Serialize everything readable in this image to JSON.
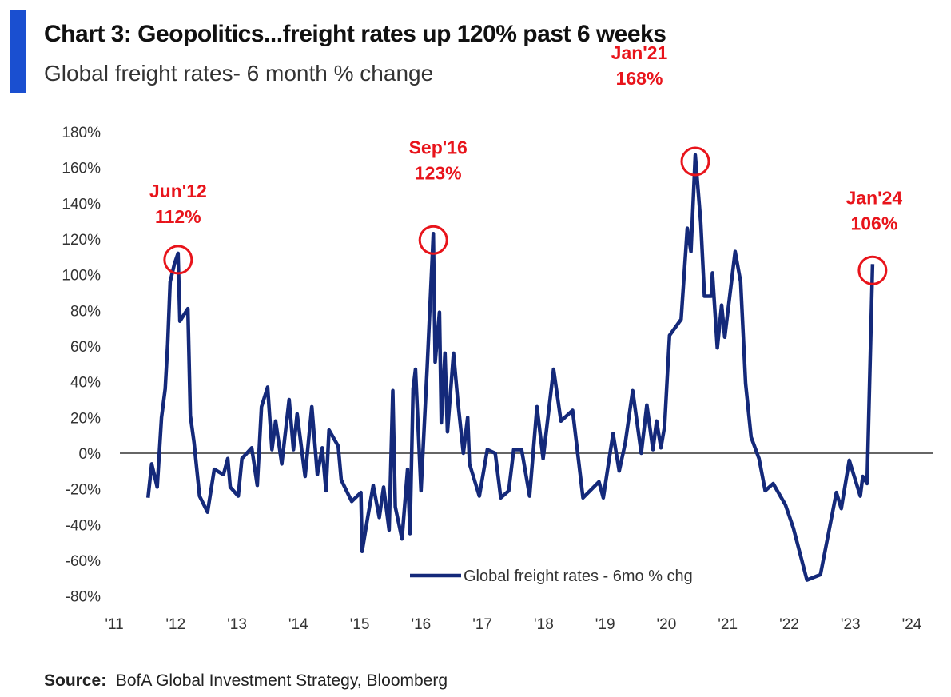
{
  "header": {
    "title": "Chart 3: Geopolitics...freight rates up 120% past 6 weeks",
    "subtitle": "Global freight rates- 6 month % change"
  },
  "source": {
    "label": "Source:",
    "text": "BofA Global Investment Strategy, Bloomberg"
  },
  "colors": {
    "accent": "#1a4fd0",
    "line": "#14297a",
    "annotation": "#e8141b",
    "zero_line": "#666666"
  },
  "chart_data": {
    "type": "line",
    "title": "Chart 3: Geopolitics...freight rates up 120% past 6 weeks",
    "subtitle": "Global freight rates- 6 month % change",
    "xlabel": "",
    "ylabel": "",
    "xlim": [
      2011,
      2024
    ],
    "ylim": [
      -80,
      180
    ],
    "x_ticks": [
      2011,
      2012,
      2013,
      2014,
      2015,
      2016,
      2017,
      2018,
      2019,
      2020,
      2021,
      2022,
      2023,
      2024
    ],
    "x_tick_labels": [
      "'11",
      "'12",
      "'13",
      "'14",
      "'15",
      "'16",
      "'17",
      "'18",
      "'19",
      "'20",
      "'21",
      "'22",
      "'23",
      "'24"
    ],
    "y_ticks": [
      180,
      160,
      140,
      120,
      100,
      80,
      60,
      40,
      20,
      0,
      -20,
      -40,
      -60,
      -80
    ],
    "y_tick_labels": [
      "180%",
      "160%",
      "140%",
      "120%",
      "100%",
      "80%",
      "60%",
      "40%",
      "20%",
      "0%",
      "-20%",
      "-40%",
      "-60%",
      "-80%"
    ],
    "grid": false,
    "legend": {
      "position": "bottom-center",
      "entries": [
        "Global freight rates - 6mo % chg"
      ]
    },
    "series": [
      {
        "name": "Global freight rates - 6mo % chg",
        "x": [
          2011.55,
          2011.61,
          2011.7,
          2011.77,
          2011.83,
          2011.87,
          2011.91,
          2011.98,
          2012.04,
          2012.07,
          2012.2,
          2012.24,
          2012.3,
          2012.39,
          2012.52,
          2012.63,
          2012.78,
          2012.85,
          2012.89,
          2013.02,
          2013.08,
          2013.24,
          2013.33,
          2013.4,
          2013.5,
          2013.57,
          2013.63,
          2013.73,
          2013.85,
          2013.92,
          2013.98,
          2014.11,
          2014.22,
          2014.31,
          2014.39,
          2014.45,
          2014.5,
          2014.65,
          2014.7,
          2014.87,
          2015.02,
          2015.04,
          2015.13,
          2015.22,
          2015.32,
          2015.39,
          2015.48,
          2015.54,
          2015.58,
          2015.69,
          2015.78,
          2015.82,
          2015.87,
          2015.91,
          2016.0,
          2016.1,
          2016.2,
          2016.23,
          2016.3,
          2016.33,
          2016.39,
          2016.43,
          2016.53,
          2016.6,
          2016.69,
          2016.76,
          2016.79,
          2016.95,
          2017.08,
          2017.21,
          2017.3,
          2017.43,
          2017.51,
          2017.64,
          2017.77,
          2017.89,
          2017.99,
          2018.16,
          2018.28,
          2018.47,
          2018.64,
          2018.9,
          2018.97,
          2019.13,
          2019.23,
          2019.33,
          2019.45,
          2019.59,
          2019.68,
          2019.78,
          2019.84,
          2019.91,
          2019.97,
          2020.05,
          2020.24,
          2020.34,
          2020.4,
          2020.47,
          2020.56,
          2020.62,
          2020.73,
          2020.75,
          2020.83,
          2020.9,
          2020.95,
          2021.12,
          2021.21,
          2021.29,
          2021.38,
          2021.51,
          2021.61,
          2021.74,
          2021.94,
          2022.07,
          2022.29,
          2022.51,
          2022.77,
          2022.85,
          2022.98,
          2023.16,
          2023.2,
          2023.27,
          2023.36
        ],
        "y": [
          -25,
          -6,
          -19,
          20,
          36,
          61,
          96,
          106,
          112,
          74,
          81,
          21,
          6,
          -24,
          -33,
          -9,
          -12,
          -3,
          -19,
          -24,
          -3,
          3,
          -18,
          26,
          37,
          2,
          18,
          -6,
          30,
          2,
          22,
          -13,
          26,
          -12,
          3,
          -21,
          13,
          4,
          -15,
          -27,
          -22,
          -55,
          -36,
          -18,
          -36,
          -19,
          -43,
          35,
          -30,
          -48,
          -9,
          -45,
          36,
          47,
          -21,
          48,
          123,
          51,
          79,
          17,
          56,
          12,
          56,
          29,
          0,
          20,
          -6,
          -24,
          2,
          0,
          -25,
          -21,
          2,
          2,
          -24,
          26,
          -3,
          47,
          18,
          24,
          -25,
          -16,
          -25,
          11,
          -10,
          6,
          35,
          0,
          27,
          2,
          18,
          3,
          15,
          66,
          75,
          126,
          113,
          167,
          129,
          88,
          88,
          101,
          59,
          83,
          65,
          113,
          96,
          39,
          9,
          -3,
          -21,
          -17,
          -29,
          -42,
          -71,
          -68,
          -22,
          -31,
          -4,
          -24,
          -13,
          -17,
          106
        ]
      }
    ],
    "annotations": [
      {
        "date": "Jun'12",
        "value_label": "112%",
        "x": 2012.04,
        "y": 112
      },
      {
        "date": "Sep'16",
        "value_label": "123%",
        "x": 2016.2,
        "y": 123
      },
      {
        "date": "Jan'21",
        "value_label": "168%",
        "x": 2020.47,
        "y": 167
      },
      {
        "date": "Jan'24",
        "value_label": "106%",
        "x": 2023.36,
        "y": 106
      }
    ]
  }
}
